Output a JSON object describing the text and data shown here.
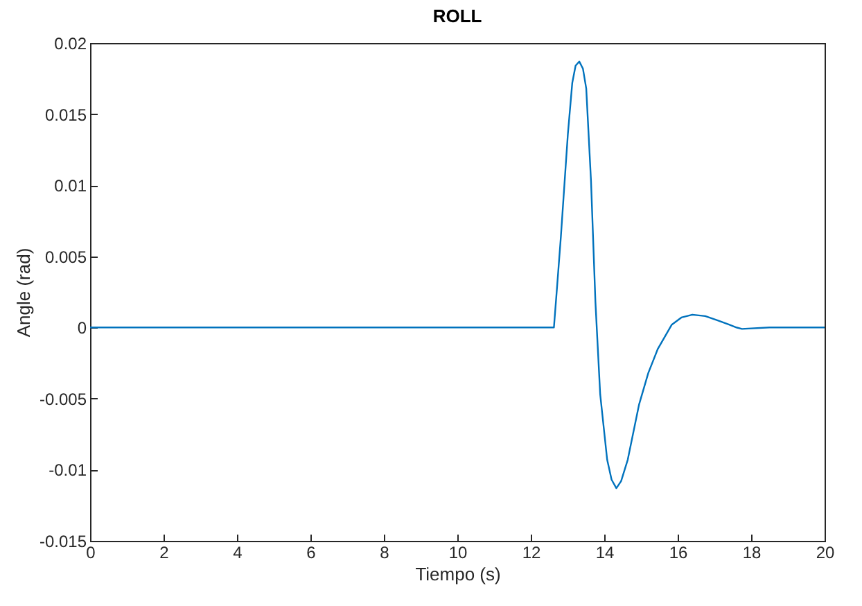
{
  "chart_data": {
    "type": "line",
    "title": "ROLL",
    "xlabel": "Tiempo (s)",
    "ylabel": "Angle (rad)",
    "xlim": [
      0,
      20
    ],
    "xticks": [
      0,
      2,
      4,
      6,
      8,
      10,
      12,
      14,
      16,
      18,
      20
    ],
    "ylim": [
      -0.015,
      0.02
    ],
    "yticks": [
      -0.015,
      -0.01,
      -0.005,
      0,
      0.005,
      0.01,
      0.015,
      0.02
    ],
    "grid": false,
    "legend": false,
    "series": [
      {
        "color": "#0072bd",
        "x": [
          0,
          5,
          10.5,
          12.63,
          12.72,
          12.82,
          12.92,
          13.01,
          13.13,
          13.22,
          13.32,
          13.42,
          13.51,
          13.64,
          13.76,
          13.89,
          14.08,
          14.2,
          14.33,
          14.46,
          14.64,
          14.95,
          15.2,
          15.46,
          15.84,
          16.1,
          16.4,
          16.75,
          17.09,
          17.4,
          17.6,
          17.75,
          18.5,
          20
        ],
        "values": [
          0,
          0,
          0,
          0,
          0.003,
          0.0064,
          0.0102,
          0.0136,
          0.0172,
          0.0184,
          0.0187,
          0.0182,
          0.0168,
          0.0103,
          0.0018,
          -0.0047,
          -0.0093,
          -0.0107,
          -0.0113,
          -0.0108,
          -0.0093,
          -0.0054,
          -0.0032,
          -0.0015,
          0.0002,
          0.0007,
          0.0009,
          0.0008,
          0.0005,
          0.0002,
          0,
          -0.0001,
          0,
          0
        ]
      }
    ]
  }
}
